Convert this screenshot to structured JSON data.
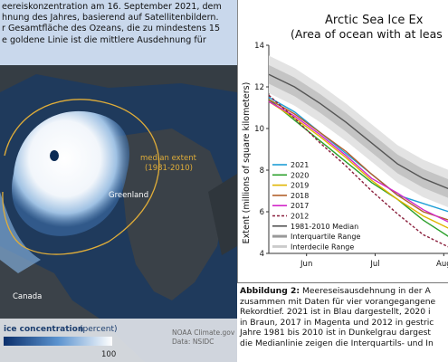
{
  "left_caption": {
    "lines": [
      "hnung des Jahres, basierend auf Satellitenbildern.",
      "r Gesamtfläche des Ozeans, die zu mindestens  15",
      "e goldene Linie ist die mittlere Ausdehnung für"
    ],
    "line1": "eereiskonzentration am 16. September 2021, dem"
  },
  "map": {
    "median_label_1": "median extent",
    "median_label_2": "(1981-2010)",
    "greenland": "Greenland",
    "canada": "Canada",
    "legend_title": "ice concentration",
    "legend_unit": "(percent)",
    "legend_max": "100",
    "credit_1": "NOAA Climate.gov",
    "credit_2": "Data: NSIDC"
  },
  "chart_data": {
    "type": "line",
    "title_line1": "Arctic Sea Ice Ex",
    "title_line2": "(Area of ocean with at leas",
    "ylabel": "Extent (millions of square kilometers)",
    "yticks": [
      "4",
      "6",
      "8",
      "10",
      "12",
      "14"
    ],
    "xticks": [
      "Jun",
      "Jul",
      "Aug"
    ],
    "ylim": [
      4,
      14
    ],
    "legend": [
      "2021",
      "2020",
      "2019",
      "2018",
      "2017",
      "2012",
      "1981-2010 Median",
      "Interquartile Range",
      "Interdecile Range"
    ],
    "series": [
      {
        "name": "2021",
        "color": "#1f9fd6",
        "x": [
          0,
          15,
          30,
          45,
          60,
          75,
          90,
          105
        ],
        "y": [
          11.5,
          10.8,
          9.8,
          8.8,
          7.8,
          6.8,
          6.4,
          6.0
        ]
      },
      {
        "name": "2020",
        "color": "#2ca02c",
        "x": [
          0,
          15,
          30,
          45,
          60,
          75,
          90,
          105
        ],
        "y": [
          11.4,
          10.4,
          9.4,
          8.4,
          7.4,
          6.6,
          5.6,
          4.8
        ]
      },
      {
        "name": "2019",
        "color": "#e0b500",
        "x": [
          0,
          15,
          30,
          45,
          60,
          75,
          90,
          105
        ],
        "y": [
          11.3,
          10.5,
          9.6,
          8.6,
          7.5,
          6.6,
          5.8,
          5.2
        ]
      },
      {
        "name": "2018",
        "color": "#b2602a",
        "x": [
          0,
          15,
          30,
          45,
          60,
          75,
          90,
          105
        ],
        "y": [
          11.4,
          10.7,
          9.8,
          8.9,
          7.8,
          6.8,
          6.0,
          5.6
        ]
      },
      {
        "name": "2017",
        "color": "#d326c9",
        "x": [
          0,
          15,
          30,
          45,
          60,
          75,
          90,
          105
        ],
        "y": [
          11.3,
          10.6,
          9.7,
          8.7,
          7.6,
          6.9,
          6.1,
          5.5
        ]
      },
      {
        "name": "2012",
        "color": "#8a1f3c",
        "dash": true,
        "x": [
          0,
          15,
          30,
          45,
          60,
          75,
          90,
          105
        ],
        "y": [
          11.6,
          10.5,
          9.3,
          8.2,
          7.0,
          5.9,
          4.9,
          4.3
        ]
      },
      {
        "name": "1981-2010 Median",
        "color": "#555555",
        "x": [
          0,
          15,
          30,
          45,
          60,
          75,
          90,
          105
        ],
        "y": [
          12.6,
          12.0,
          11.2,
          10.3,
          9.3,
          8.3,
          7.6,
          7.1
        ]
      }
    ]
  },
  "bottom_caption": {
    "label": "Abbildung 2:",
    "line1_rest": " Meereseisausdehnung in der A",
    "lines": [
      "zusammen mit Daten für vier vorangegangene",
      "Rekordtief. 2021 ist in Blau dargestellt, 2020 i",
      "in Braun, 2017 in Magenta und 2012 in gestric",
      "Jahre 1981 bis 2010 ist in Dunkelgrau dargest",
      "die Medianlinie zeigen die Interquartils- und In"
    ]
  }
}
